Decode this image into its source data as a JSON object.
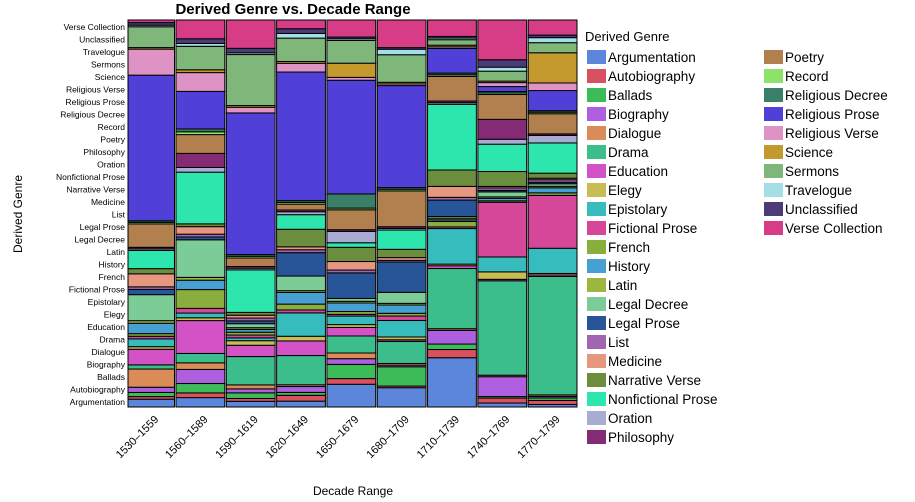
{
  "chart_data": {
    "type": "mosaic",
    "title": "Derived Genre vs. Decade Range",
    "xlabel": "Decade Range",
    "ylabel": "Derived Genre",
    "legend_title": "Derived Genre",
    "legend_position": "right",
    "categories": [
      "1530–1559",
      "1560–1589",
      "1590–1619",
      "1620–1649",
      "1650–1679",
      "1680–1709",
      "1710–1739",
      "1740–1769",
      "1770–1799"
    ],
    "column_weights": [
      1,
      1.05,
      1.05,
      1.05,
      1.05,
      1.05,
      1.05,
      1.05,
      1.05
    ],
    "genres": [
      "Argumentation",
      "Autobiography",
      "Ballads",
      "Biography",
      "Dialogue",
      "Drama",
      "Education",
      "Elegy",
      "Epistolary",
      "Fictional Prose",
      "French",
      "History",
      "Latin",
      "Legal Decree",
      "Legal Prose",
      "List",
      "Medicine",
      "Narrative Verse",
      "Nonfictional Prose",
      "Oration",
      "Philosophy",
      "Poetry",
      "Record",
      "Religious Decree",
      "Religious Prose",
      "Religious Verse",
      "Science",
      "Sermons",
      "Travelogue",
      "Unclassified",
      "Verse Collection"
    ],
    "colors": [
      "#5b86d9",
      "#d9505f",
      "#3cbc58",
      "#ad5fe0",
      "#d98c55",
      "#3bbd8c",
      "#d352c6",
      "#c7bd52",
      "#37bcbe",
      "#d6479a",
      "#8aae3e",
      "#47a0d2",
      "#9db640",
      "#7ccc98",
      "#275597",
      "#a266b0",
      "#e5987f",
      "#6a8d3e",
      "#2de6ad",
      "#a9acd2",
      "#852a74",
      "#b2804f",
      "#8de36a",
      "#3a7f67",
      "#5040d7",
      "#df93c5",
      "#c49a2e",
      "#7fb67a",
      "#a4dfe6",
      "#4c3a79",
      "#d63d86"
    ],
    "values": [
      [
        1.5,
        0.5,
        0.8,
        1.0,
        3.5,
        0.8,
        3.0,
        0.5,
        1.5,
        0.5,
        0.5,
        2.0,
        0.5,
        5.0,
        1.0,
        0.5,
        2.5,
        1.0,
        3.5,
        0.3,
        0.3,
        4.5,
        0.3,
        0.3,
        28.0,
        5.0,
        0.3,
        4.0,
        0.3,
        0.5,
        0.5
      ],
      [
        1.0,
        0.5,
        1.0,
        1.5,
        0.7,
        1.0,
        3.5,
        0.3,
        0.5,
        0.5,
        2.0,
        1.0,
        0.3,
        4.0,
        0.3,
        0.3,
        0.8,
        0.3,
        5.5,
        0.5,
        1.5,
        2.0,
        0.3,
        0.3,
        4.0,
        2.0,
        0.3,
        2.5,
        0.3,
        0.5,
        2.0
      ],
      [
        1.0,
        0.5,
        1.0,
        0.7,
        0.7,
        5.0,
        2.0,
        0.8,
        0.5,
        0.5,
        0.5,
        0.5,
        0.3,
        0.7,
        0.5,
        0.5,
        0.5,
        0.5,
        7.5,
        0.3,
        0.3,
        1.5,
        0.3,
        0.3,
        25.0,
        1.0,
        0.3,
        9.0,
        0.3,
        0.8,
        5.0
      ],
      [
        1.0,
        1.0,
        0.5,
        1.0,
        0.3,
        5.0,
        2.5,
        0.8,
        4.0,
        0.5,
        1.0,
        2.0,
        0.3,
        2.5,
        4.0,
        0.5,
        0.5,
        3.0,
        2.5,
        0.5,
        0.3,
        1.0,
        0.3,
        0.3,
        22.0,
        1.5,
        0.3,
        4.0,
        0.8,
        0.8,
        1.5
      ],
      [
        4.0,
        1.0,
        2.5,
        1.0,
        1.0,
        3.0,
        1.5,
        0.5,
        1.5,
        0.3,
        0.5,
        1.5,
        0.3,
        0.5,
        4.5,
        0.5,
        1.5,
        2.5,
        0.8,
        2.0,
        0.3,
        3.5,
        0.3,
        2.5,
        20.0,
        0.5,
        2.5,
        4.0,
        0.3,
        0.3,
        3.0
      ],
      [
        3.5,
        0.3,
        3.5,
        0.3,
        0.3,
        4.0,
        0.3,
        0.5,
        3.0,
        0.8,
        0.5,
        1.5,
        0.3,
        2.0,
        5.5,
        0.3,
        0.5,
        1.5,
        3.5,
        0.3,
        0.3,
        6.5,
        0.3,
        0.3,
        18.5,
        0.3,
        0.3,
        5.0,
        1.0,
        0.3,
        5.0
      ],
      [
        9.0,
        1.5,
        1.0,
        2.5,
        0.3,
        11.0,
        0.5,
        0.3,
        6.5,
        0.3,
        1.0,
        0.3,
        0.3,
        0.3,
        3.0,
        0.5,
        2.0,
        3.0,
        12.0,
        0.3,
        0.3,
        4.5,
        0.3,
        0.3,
        4.5,
        0.3,
        0.3,
        1.0,
        0.3,
        0.3,
        3.0
      ],
      [
        0.8,
        1.0,
        0.3,
        4.0,
        0.3,
        19.0,
        0.3,
        1.5,
        3.0,
        11.0,
        0.3,
        0.5,
        0.3,
        1.0,
        0.3,
        0.5,
        0.3,
        3.0,
        5.5,
        1.0,
        4.0,
        5.0,
        0.3,
        0.3,
        1.0,
        0.8,
        0.3,
        2.0,
        0.8,
        1.5,
        8.0
      ],
      [
        0.5,
        0.8,
        0.5,
        0.3,
        0.3,
        23.5,
        0.3,
        0.3,
        5.0,
        10.5,
        0.5,
        1.0,
        0.3,
        0.5,
        0.3,
        0.5,
        0.3,
        1.0,
        6.0,
        1.5,
        0.3,
        4.0,
        0.3,
        0.3,
        4.0,
        1.5,
        6.0,
        2.0,
        1.0,
        0.5,
        3.0
      ]
    ]
  }
}
